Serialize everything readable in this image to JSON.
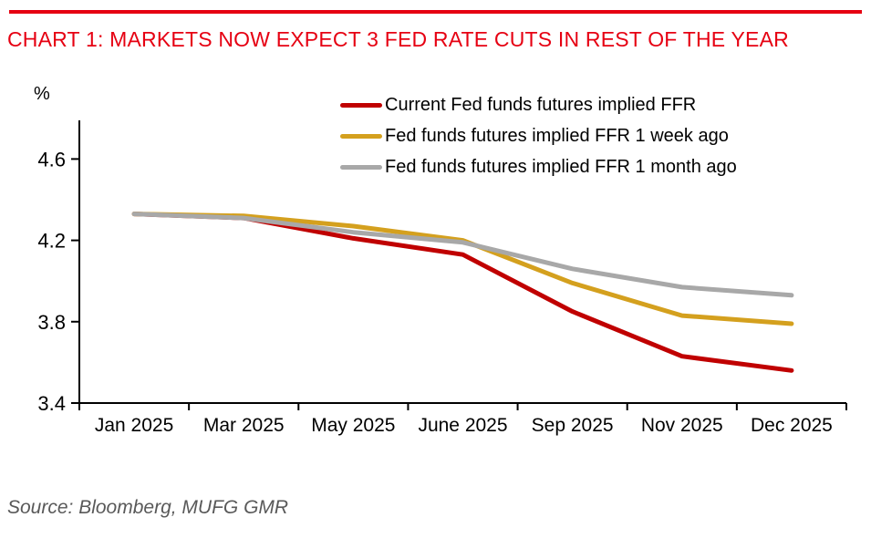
{
  "page": {
    "title": "CHART 1: MARKETS NOW EXPECT 3 FED RATE CUTS IN REST OF THE YEAR",
    "source": "Source: Bloomberg, MUFG GMR"
  },
  "colors": {
    "accent_red": "#e60012",
    "axis_black": "#000000",
    "source_gray": "#595959"
  },
  "chart_data": {
    "type": "line",
    "title": "CHART 1: MARKETS NOW EXPECT 3 FED RATE CUTS IN REST OF THE YEAR",
    "y_unit": "%",
    "xlabel": "",
    "ylabel": "%",
    "categories": [
      "Jan 2025",
      "Mar 2025",
      "May 2025",
      "June 2025",
      "Sep 2025",
      "Nov 2025",
      "Dec 2025"
    ],
    "y_ticks": [
      4.6,
      4.2,
      3.8,
      3.4
    ],
    "ylim": [
      3.4,
      4.79
    ],
    "grid": false,
    "legend_position": "top-right",
    "series": [
      {
        "name": "Current Fed funds futures implied FFR",
        "color": "#c00000",
        "values": [
          4.33,
          4.31,
          4.21,
          4.13,
          3.85,
          3.63,
          3.56
        ]
      },
      {
        "name": "Fed funds futures implied FFR 1 week ago",
        "color": "#d4a01e",
        "values": [
          4.33,
          4.32,
          4.27,
          4.2,
          3.99,
          3.83,
          3.79
        ]
      },
      {
        "name": "Fed funds futures implied FFR 1 month ago",
        "color": "#a8a8a8",
        "values": [
          4.33,
          4.31,
          4.24,
          4.19,
          4.06,
          3.97,
          3.93
        ]
      }
    ]
  }
}
